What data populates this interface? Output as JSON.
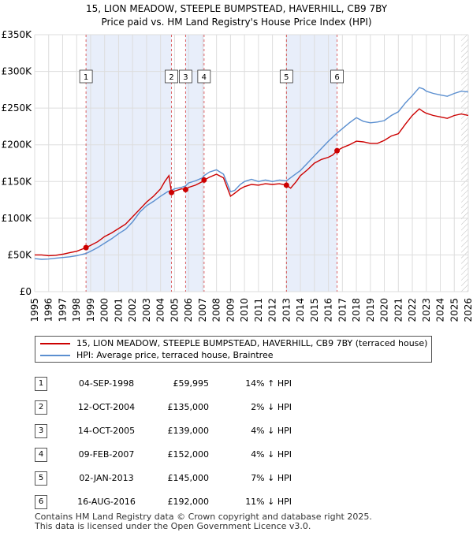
{
  "chart_data": {
    "type": "line",
    "title": "15, LION MEADOW, STEEPLE BUMPSTEAD, HAVERHILL, CB9 7BY",
    "subtitle": "Price paid vs. HM Land Registry's House Price Index (HPI)",
    "xlim": [
      1995,
      2026
    ],
    "ylim": [
      0,
      350000
    ],
    "x_ticks": [
      1995,
      1996,
      1997,
      1998,
      1999,
      2000,
      2001,
      2002,
      2003,
      2004,
      2005,
      2006,
      2007,
      2008,
      2009,
      2010,
      2011,
      2012,
      2013,
      2014,
      2015,
      2016,
      2017,
      2018,
      2019,
      2020,
      2021,
      2022,
      2023,
      2024,
      2025,
      2026
    ],
    "y_ticks": [
      {
        "value": 0,
        "label": "£0"
      },
      {
        "value": 50000,
        "label": "£50K"
      },
      {
        "value": 100000,
        "label": "£100K"
      },
      {
        "value": 150000,
        "label": "£150K"
      },
      {
        "value": 200000,
        "label": "£200K"
      },
      {
        "value": 250000,
        "label": "£250K"
      },
      {
        "value": 300000,
        "label": "£300K"
      },
      {
        "value": 350000,
        "label": "£350K"
      }
    ],
    "series": [
      {
        "name": "15, LION MEADOW, STEEPLE BUMPSTEAD, HAVERHILL, CB9 7BY (terraced house)",
        "color": "#cc0000",
        "x": [
          1995.0,
          1995.5,
          1996.0,
          1996.5,
          1997.0,
          1997.5,
          1998.0,
          1998.67,
          1999.0,
          1999.5,
          2000.0,
          2000.5,
          2001.0,
          2001.5,
          2002.0,
          2002.5,
          2003.0,
          2003.5,
          2004.0,
          2004.3,
          2004.6,
          2004.78,
          2005.0,
          2005.5,
          2005.79,
          2006.0,
          2006.5,
          2007.0,
          2007.11,
          2007.5,
          2008.0,
          2008.5,
          2009.0,
          2009.3,
          2009.7,
          2010.0,
          2010.5,
          2011.0,
          2011.5,
          2012.0,
          2012.5,
          2013.0,
          2013.3,
          2013.7,
          2014.0,
          2014.5,
          2015.0,
          2015.5,
          2016.0,
          2016.3,
          2016.62,
          2017.0,
          2017.5,
          2018.0,
          2018.5,
          2019.0,
          2019.5,
          2020.0,
          2020.5,
          2021.0,
          2021.5,
          2022.0,
          2022.5,
          2022.8,
          2023.0,
          2023.5,
          2024.0,
          2024.5,
          2025.0,
          2025.5,
          2026.0
        ],
        "y": [
          50000,
          50000,
          49000,
          49500,
          51000,
          53000,
          55000,
          59995,
          63000,
          68000,
          75000,
          80000,
          86000,
          92000,
          102000,
          112000,
          122000,
          130000,
          140000,
          150000,
          158000,
          135000,
          137000,
          140000,
          139000,
          142000,
          145000,
          150000,
          152000,
          156000,
          160000,
          155000,
          130000,
          134000,
          140000,
          143000,
          146000,
          145000,
          147000,
          146000,
          147000,
          145000,
          141000,
          150000,
          158000,
          166000,
          175000,
          180000,
          183000,
          186000,
          192000,
          196000,
          200000,
          205000,
          204000,
          202000,
          202000,
          206000,
          212000,
          215000,
          228000,
          240000,
          249000,
          245000,
          243000,
          240000,
          238000,
          236000,
          240000,
          242000,
          240000
        ]
      },
      {
        "name": "HPI: Average price, terraced house, Braintree",
        "color": "#5b8fd0",
        "x": [
          1995.0,
          1995.5,
          1996.0,
          1996.5,
          1997.0,
          1997.5,
          1998.0,
          1998.67,
          1999.0,
          1999.5,
          2000.0,
          2000.5,
          2001.0,
          2001.5,
          2002.0,
          2002.5,
          2003.0,
          2003.5,
          2004.0,
          2004.5,
          2004.78,
          2005.0,
          2005.5,
          2005.79,
          2006.0,
          2006.5,
          2007.0,
          2007.11,
          2007.5,
          2008.0,
          2008.5,
          2009.0,
          2009.3,
          2009.7,
          2010.0,
          2010.5,
          2011.0,
          2011.5,
          2012.0,
          2012.5,
          2013.0,
          2013.5,
          2014.0,
          2014.5,
          2015.0,
          2015.5,
          2016.0,
          2016.62,
          2017.0,
          2017.5,
          2018.0,
          2018.5,
          2019.0,
          2019.5,
          2020.0,
          2020.5,
          2021.0,
          2021.5,
          2022.0,
          2022.5,
          2022.8,
          2023.0,
          2023.5,
          2024.0,
          2024.5,
          2025.0,
          2025.5,
          2026.0
        ],
        "y": [
          45000,
          44000,
          44500,
          45500,
          46500,
          47500,
          49000,
          52000,
          55000,
          60000,
          66000,
          72000,
          79000,
          85000,
          95000,
          108000,
          117000,
          123000,
          130000,
          136000,
          138000,
          140000,
          142000,
          144000,
          148000,
          151000,
          155000,
          158000,
          163000,
          166000,
          160000,
          136000,
          138000,
          146000,
          150000,
          153000,
          150000,
          152000,
          150000,
          152000,
          151000,
          158000,
          165000,
          175000,
          185000,
          195000,
          205000,
          216000,
          222000,
          230000,
          237000,
          232000,
          230000,
          231000,
          233000,
          240000,
          245000,
          257000,
          267000,
          278000,
          276000,
          273000,
          270000,
          268000,
          266000,
          270000,
          273000,
          272000
        ]
      }
    ],
    "sales": [
      {
        "num": "1",
        "x": 1998.67,
        "y": 59995
      },
      {
        "num": "2",
        "x": 2004.78,
        "y": 135000
      },
      {
        "num": "3",
        "x": 2005.79,
        "y": 139000
      },
      {
        "num": "4",
        "x": 2007.11,
        "y": 152000
      },
      {
        "num": "5",
        "x": 2013.0,
        "y": 145000
      },
      {
        "num": "6",
        "x": 2016.62,
        "y": 192000
      }
    ],
    "shaded_ranges": [
      [
        1998.67,
        2004.78
      ],
      [
        2005.79,
        2007.11
      ],
      [
        2013.0,
        2016.62
      ]
    ],
    "hatch_from": 2025.5
  },
  "legend": {
    "property_label": "15, LION MEADOW, STEEPLE BUMPSTEAD, HAVERHILL, CB9 7BY (terraced house)",
    "hpi_label": "HPI: Average price, terraced house, Braintree",
    "property_color": "#cc0000",
    "hpi_color": "#5b8fd0"
  },
  "sales_table": [
    {
      "num": "1",
      "date": "04-SEP-1998",
      "price": "£59,995",
      "hpi": "14% ↑ HPI"
    },
    {
      "num": "2",
      "date": "12-OCT-2004",
      "price": "£135,000",
      "hpi": "2% ↓ HPI"
    },
    {
      "num": "3",
      "date": "14-OCT-2005",
      "price": "£139,000",
      "hpi": "4% ↓ HPI"
    },
    {
      "num": "4",
      "date": "09-FEB-2007",
      "price": "£152,000",
      "hpi": "4% ↓ HPI"
    },
    {
      "num": "5",
      "date": "02-JAN-2013",
      "price": "£145,000",
      "hpi": "7% ↓ HPI"
    },
    {
      "num": "6",
      "date": "16-AUG-2016",
      "price": "£192,000",
      "hpi": "11% ↓ HPI"
    }
  ],
  "footer": {
    "line1": "Contains HM Land Registry data © Crown copyright and database right 2025.",
    "line2": "This data is licensed under the Open Government Licence v3.0."
  }
}
